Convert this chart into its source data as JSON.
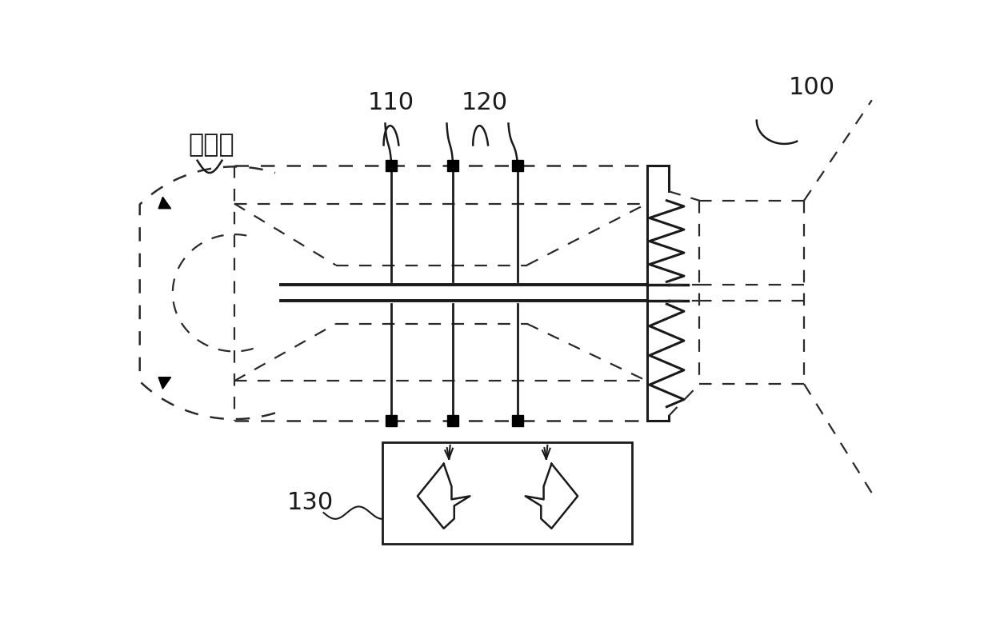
{
  "label_compressor": "压气机",
  "label_100": "100",
  "label_110": "110",
  "label_120": "120",
  "label_130": "130",
  "bg_color": "#ffffff",
  "line_color": "#1a1a1a",
  "dashed_color": "#2a2a2a"
}
